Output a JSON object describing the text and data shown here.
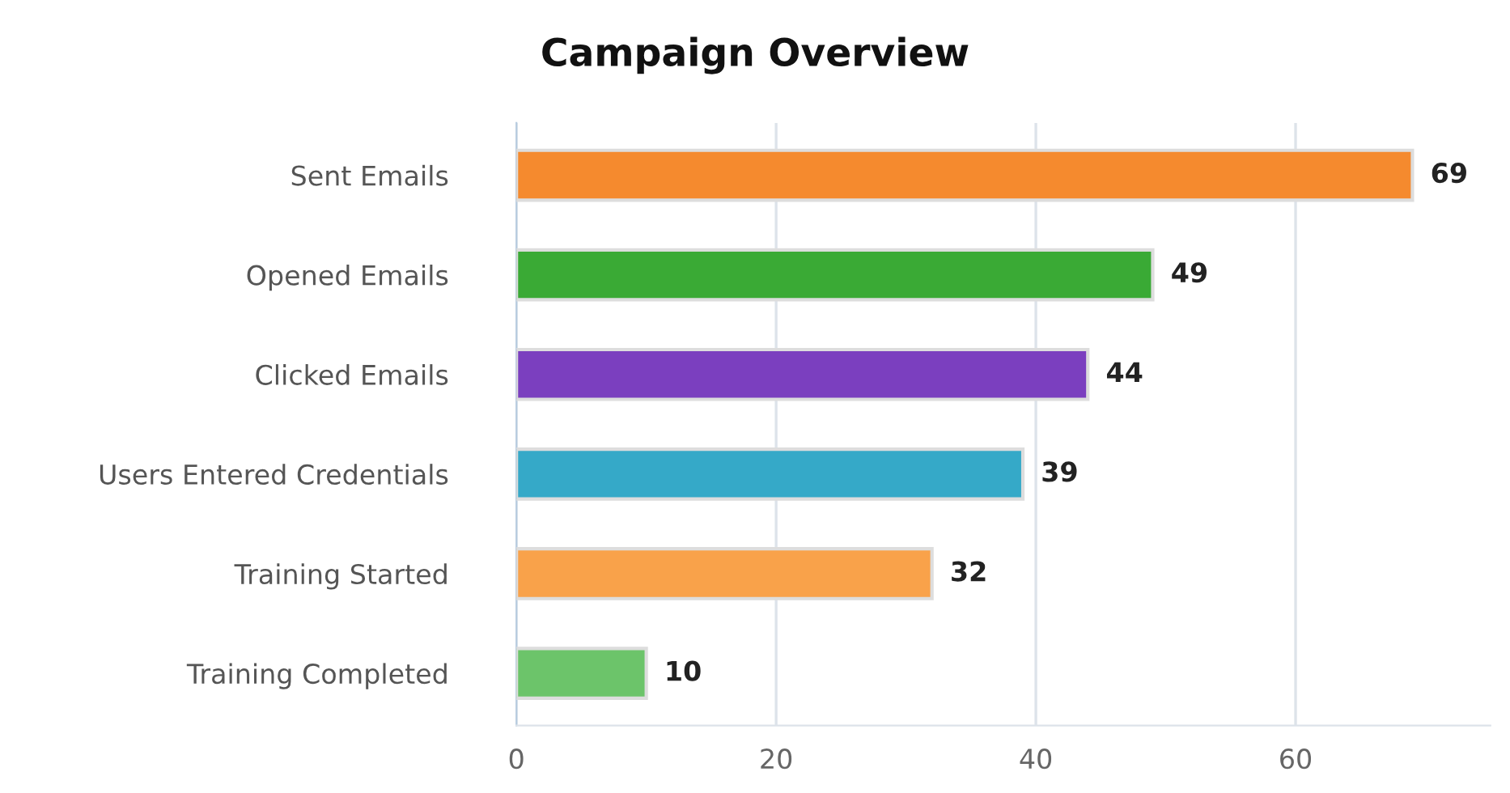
{
  "chart_data": {
    "type": "bar",
    "orientation": "horizontal",
    "title": "Campaign Overview",
    "categories": [
      "Sent Emails",
      "Opened Emails",
      "Clicked Emails",
      "Users Entered Credentials",
      "Training Started",
      "Training Completed"
    ],
    "values": [
      69,
      49,
      44,
      39,
      32,
      10
    ],
    "colors": [
      "#f58a2e",
      "#3aaa35",
      "#7b3fbf",
      "#35a9c8",
      "#f9a24a",
      "#6cc46a"
    ],
    "xlim": [
      0,
      75
    ],
    "xticks": [
      0,
      20,
      40,
      60
    ],
    "grid": "x",
    "data_labels": true
  }
}
